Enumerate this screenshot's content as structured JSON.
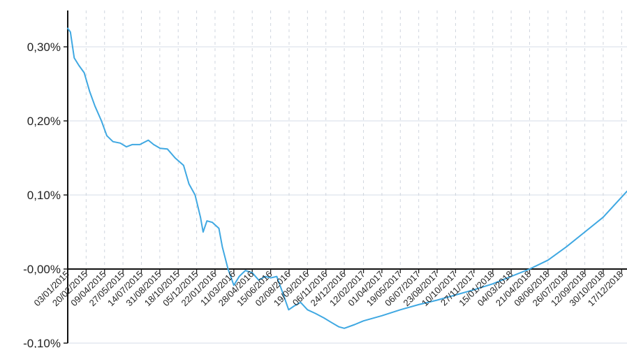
{
  "chart_data": {
    "type": "line",
    "x_type": "date",
    "xlim": [
      "03/01/2015",
      "31/12/2018"
    ],
    "ylim": [
      -0.1,
      0.35
    ],
    "y_ticks": [
      {
        "value": 0.3,
        "label": "0,30%"
      },
      {
        "value": 0.2,
        "label": "0,20%"
      },
      {
        "value": 0.1,
        "label": "0,10%"
      },
      {
        "value": 0.0,
        "label": "-0,00%"
      },
      {
        "value": -0.1,
        "label": "-0,10%"
      }
    ],
    "x_ticks": [
      "03/01/2015",
      "20/02/2015",
      "09/04/2015",
      "27/05/2015",
      "14/07/2015",
      "31/08/2015",
      "18/10/2015",
      "05/12/2015",
      "22/01/2016",
      "11/03/2016",
      "28/04/2016",
      "15/06/2016",
      "02/08/2016",
      "19/09/2016",
      "06/11/2016",
      "24/12/2016",
      "12/02/2017",
      "01/04/2017",
      "19/05/2017",
      "06/07/2017",
      "23/08/2017",
      "10/10/2017",
      "27/11/2017",
      "15/01/2018",
      "04/03/2018",
      "21/04/2018",
      "08/06/2018",
      "26/07/2018",
      "12/09/2018",
      "30/10/2018",
      "17/12/2018"
    ],
    "grid": true,
    "series": [
      {
        "color": "#3fa8e2",
        "points": [
          [
            "03/01/2015",
            0.325
          ],
          [
            "10/01/2015",
            0.32
          ],
          [
            "20/01/2015",
            0.285
          ],
          [
            "01/02/2015",
            0.275
          ],
          [
            "15/02/2015",
            0.265
          ],
          [
            "01/03/2015",
            0.24
          ],
          [
            "15/03/2015",
            0.22
          ],
          [
            "01/04/2015",
            0.2
          ],
          [
            "15/04/2015",
            0.18
          ],
          [
            "01/05/2015",
            0.172
          ],
          [
            "20/05/2015",
            0.17
          ],
          [
            "05/06/2015",
            0.165
          ],
          [
            "20/06/2015",
            0.168
          ],
          [
            "10/07/2015",
            0.168
          ],
          [
            "01/08/2015",
            0.174
          ],
          [
            "15/08/2015",
            0.168
          ],
          [
            "01/09/2015",
            0.163
          ],
          [
            "20/09/2015",
            0.162
          ],
          [
            "10/10/2015",
            0.15
          ],
          [
            "01/11/2015",
            0.14
          ],
          [
            "15/11/2015",
            0.115
          ],
          [
            "01/12/2015",
            0.1
          ],
          [
            "15/12/2015",
            0.07
          ],
          [
            "22/12/2015",
            0.05
          ],
          [
            "01/01/2016",
            0.065
          ],
          [
            "15/01/2016",
            0.063
          ],
          [
            "01/02/2016",
            0.055
          ],
          [
            "10/02/2016",
            0.03
          ],
          [
            "25/02/2016",
            0.0
          ],
          [
            "11/03/2016",
            -0.022
          ],
          [
            "25/03/2016",
            -0.01
          ],
          [
            "10/04/2016",
            -0.002
          ],
          [
            "28/04/2016",
            -0.005
          ],
          [
            "15/05/2016",
            -0.015
          ],
          [
            "01/06/2016",
            -0.01
          ],
          [
            "15/06/2016",
            -0.012
          ],
          [
            "01/07/2016",
            -0.01
          ],
          [
            "15/07/2016",
            -0.03
          ],
          [
            "01/08/2016",
            -0.055
          ],
          [
            "15/08/2016",
            -0.05
          ],
          [
            "01/09/2016",
            -0.045
          ],
          [
            "19/09/2016",
            -0.055
          ],
          [
            "10/10/2016",
            -0.06
          ],
          [
            "01/11/2016",
            -0.066
          ],
          [
            "20/11/2016",
            -0.072
          ],
          [
            "10/12/2016",
            -0.078
          ],
          [
            "24/12/2016",
            -0.08
          ],
          [
            "20/01/2017",
            -0.075
          ],
          [
            "12/02/2017",
            -0.07
          ],
          [
            "01/04/2017",
            -0.063
          ],
          [
            "19/05/2017",
            -0.055
          ],
          [
            "06/07/2017",
            -0.048
          ],
          [
            "23/08/2017",
            -0.042
          ],
          [
            "10/10/2017",
            -0.035
          ],
          [
            "27/11/2017",
            -0.028
          ],
          [
            "15/01/2018",
            -0.02
          ],
          [
            "04/03/2018",
            -0.01
          ],
          [
            "21/04/2018",
            0.0
          ],
          [
            "08/06/2018",
            0.012
          ],
          [
            "26/07/2018",
            0.03
          ],
          [
            "12/09/2018",
            0.05
          ],
          [
            "30/10/2018",
            0.07
          ],
          [
            "31/12/2018",
            0.105
          ]
        ]
      }
    ]
  }
}
